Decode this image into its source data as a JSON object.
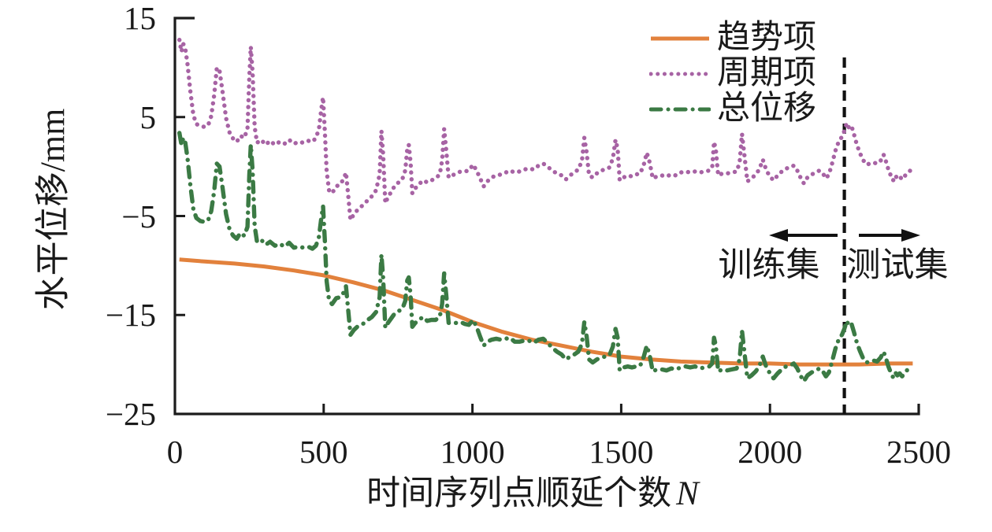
{
  "chart_data": {
    "type": "line",
    "title": "",
    "xlabel": "时间序列点顺延个数",
    "xlabel_suffix": "N",
    "ylabel": "水平位移/mm",
    "xlim": [
      0,
      2500
    ],
    "ylim": [
      -25,
      15
    ],
    "grid": false,
    "legend_position": "top-right",
    "axis_color": "#1c1c1c",
    "xticks": {
      "values": [
        0,
        500,
        1000,
        1500,
        2000,
        2500
      ],
      "labels": [
        "0",
        "500",
        "1000",
        "1500",
        "2000",
        "2500"
      ]
    },
    "yticks": {
      "values": [
        15,
        5,
        -5,
        -15,
        -25
      ],
      "labels": [
        "15",
        "5",
        "−5",
        "−15",
        "−25"
      ]
    },
    "annotations": {
      "split_N": 2250,
      "split_line_color": "#111111",
      "train_label": "训练集",
      "test_label": "测试集"
    },
    "series": [
      {
        "name": "趋势项",
        "style": "solid",
        "color": "#E2813C",
        "x": [
          15,
          100,
          200,
          300,
          400,
          500,
          600,
          700,
          800,
          900,
          1000,
          1100,
          1200,
          1300,
          1400,
          1500,
          1600,
          1700,
          1800,
          1900,
          2000,
          2100,
          2200,
          2300,
          2400,
          2480
        ],
        "y": [
          -9.4,
          -9.6,
          -9.8,
          -10.1,
          -10.5,
          -11.0,
          -11.7,
          -12.5,
          -13.5,
          -14.5,
          -15.7,
          -16.7,
          -17.5,
          -18.1,
          -18.7,
          -19.2,
          -19.5,
          -19.7,
          -19.8,
          -19.9,
          -19.9,
          -20.0,
          -20.0,
          -20.0,
          -19.9,
          -19.9
        ]
      },
      {
        "name": "周期项",
        "style": "dotted",
        "color": "#A763A4",
        "x": [
          15,
          22,
          28,
          35,
          42,
          52,
          62,
          72,
          85,
          100,
          112,
          122,
          132,
          141,
          150,
          160,
          172,
          184,
          196,
          208,
          220,
          233,
          244,
          250,
          255,
          261,
          268,
          276,
          290,
          305,
          320,
          336,
          352,
          368,
          384,
          400,
          416,
          432,
          448,
          462,
          474,
          484,
          492,
          498,
          504,
          510,
          518,
          528,
          542,
          556,
          568,
          575,
          582,
          590,
          602,
          616,
          632,
          648,
          662,
          676,
          688,
          694,
          700,
          707,
          716,
          728,
          740,
          752,
          764,
          774,
          781,
          786,
          792,
          798,
          808,
          820,
          834,
          848,
          862,
          876,
          890,
          898,
          905,
          912,
          920,
          932,
          946,
          960,
          974,
          988,
          1002,
          1014,
          1026,
          1038,
          1050,
          1064,
          1080,
          1096,
          1112,
          1126,
          1142,
          1158,
          1174,
          1190,
          1206,
          1222,
          1238,
          1252,
          1268,
          1284,
          1300,
          1314,
          1328,
          1342,
          1356,
          1368,
          1376,
          1384,
          1392,
          1404,
          1418,
          1432,
          1446,
          1460,
          1472,
          1481,
          1488,
          1495,
          1508,
          1522,
          1536,
          1550,
          1564,
          1576,
          1586,
          1596,
          1606,
          1620,
          1636,
          1652,
          1668,
          1684,
          1700,
          1716,
          1732,
          1748,
          1764,
          1780,
          1796,
          1806,
          1812,
          1818,
          1826,
          1840,
          1856,
          1872,
          1888,
          1898,
          1906,
          1914,
          1924,
          1938,
          1952,
          1964,
          1976,
          1988,
          2000,
          2012,
          2026,
          2040,
          2054,
          2068,
          2080,
          2092,
          2104,
          2114,
          2126,
          2140,
          2154,
          2166,
          2178,
          2188,
          2198,
          2208,
          2220,
          2232,
          2242,
          2250,
          2258,
          2266,
          2274,
          2282,
          2292,
          2302,
          2312,
          2324,
          2336,
          2348,
          2360,
          2372,
          2382,
          2390,
          2398,
          2406,
          2414,
          2421,
          2428,
          2436,
          2444,
          2452,
          2460,
          2468,
          2476
        ],
        "y": [
          12.8,
          11.6,
          12.4,
          11.9,
          10.4,
          7.6,
          5.2,
          4.3,
          4.1,
          4.0,
          4.2,
          5.1,
          7.2,
          10.0,
          9.7,
          7.6,
          4.9,
          3.4,
          2.8,
          2.5,
          3.1,
          2.9,
          3.8,
          9.0,
          12.1,
          9.5,
          4.0,
          2.4,
          2.7,
          2.2,
          2.6,
          2.2,
          2.5,
          2.3,
          2.7,
          2.3,
          2.5,
          2.4,
          2.6,
          2.5,
          2.9,
          3.8,
          5.8,
          7.0,
          3.5,
          -0.5,
          -2.4,
          -2.7,
          -2.0,
          -1.8,
          -1.2,
          -0.6,
          -2.8,
          -5.4,
          -4.8,
          -4.3,
          -3.9,
          -3.4,
          -3.0,
          -2.4,
          -0.8,
          3.6,
          1.2,
          -3.7,
          -3.1,
          -2.5,
          -1.9,
          -1.6,
          -1.3,
          -0.4,
          1.8,
          2.2,
          0.4,
          -2.7,
          -2.2,
          -1.8,
          -1.4,
          -1.6,
          -1.4,
          -1.2,
          -0.8,
          0.6,
          3.8,
          1.6,
          -1.1,
          -0.9,
          -0.7,
          -0.5,
          -0.5,
          -0.4,
          0.2,
          -0.4,
          -1.2,
          -2.0,
          -1.5,
          -1.1,
          -0.9,
          -0.8,
          -0.6,
          -0.4,
          -0.6,
          -0.5,
          -0.3,
          -0.2,
          -0.3,
          0.1,
          0.3,
          0.0,
          -0.4,
          -0.7,
          -0.9,
          -1.3,
          -0.9,
          -0.6,
          -0.3,
          0.6,
          2.9,
          1.4,
          -0.9,
          -1.1,
          -0.7,
          -0.4,
          -0.3,
          -0.1,
          0.8,
          2.7,
          1.8,
          -1.4,
          -1.1,
          -0.9,
          -1.0,
          -0.8,
          -0.7,
          0.2,
          1.4,
          0.4,
          -1.2,
          -1.0,
          -0.9,
          -1.0,
          -0.8,
          -0.9,
          -0.6,
          -0.5,
          -0.6,
          -0.5,
          -0.6,
          -0.5,
          -0.4,
          -0.1,
          2.5,
          1.7,
          -0.9,
          -0.7,
          -0.7,
          -0.6,
          -0.5,
          0.4,
          3.3,
          1.2,
          -1.5,
          -1.2,
          -0.8,
          -0.3,
          0.7,
          -0.4,
          -1.0,
          -1.4,
          -0.9,
          -0.5,
          -0.2,
          -0.1,
          0.1,
          -0.4,
          -1.2,
          -1.7,
          -1.1,
          -0.8,
          -0.6,
          -0.4,
          -0.7,
          -1.2,
          -0.8,
          0.2,
          1.6,
          2.6,
          3.0,
          3.6,
          4.4,
          3.9,
          4.1,
          3.3,
          2.2,
          1.4,
          0.7,
          0.2,
          0.3,
          0.4,
          0.3,
          0.6,
          1.2,
          0.5,
          -0.3,
          -0.9,
          -1.4,
          -0.9,
          -1.2,
          -1.0,
          -1.3,
          -1.0,
          -0.7,
          -0.5,
          -0.3
        ]
      },
      {
        "name": "总位移",
        "style": "dashdot",
        "color": "#3B7A44",
        "x": [
          15,
          22,
          28,
          35,
          42,
          52,
          62,
          72,
          85,
          100,
          112,
          122,
          132,
          141,
          150,
          160,
          172,
          184,
          196,
          208,
          220,
          233,
          244,
          250,
          255,
          261,
          268,
          276,
          290,
          305,
          320,
          336,
          352,
          368,
          384,
          400,
          416,
          432,
          448,
          462,
          474,
          484,
          492,
          498,
          504,
          510,
          518,
          528,
          542,
          556,
          568,
          575,
          582,
          590,
          602,
          616,
          632,
          648,
          662,
          676,
          688,
          694,
          700,
          707,
          716,
          728,
          740,
          752,
          764,
          774,
          781,
          786,
          792,
          798,
          808,
          820,
          834,
          848,
          862,
          876,
          890,
          898,
          905,
          912,
          920,
          932,
          946,
          960,
          974,
          988,
          1002,
          1014,
          1026,
          1038,
          1050,
          1064,
          1080,
          1096,
          1112,
          1126,
          1142,
          1158,
          1174,
          1190,
          1206,
          1222,
          1238,
          1252,
          1268,
          1284,
          1300,
          1314,
          1328,
          1342,
          1356,
          1368,
          1376,
          1384,
          1392,
          1404,
          1418,
          1432,
          1446,
          1460,
          1472,
          1481,
          1488,
          1495,
          1508,
          1522,
          1536,
          1550,
          1564,
          1576,
          1586,
          1596,
          1606,
          1620,
          1636,
          1652,
          1668,
          1684,
          1700,
          1716,
          1732,
          1748,
          1764,
          1780,
          1796,
          1806,
          1812,
          1818,
          1826,
          1840,
          1856,
          1872,
          1888,
          1898,
          1906,
          1914,
          1924,
          1938,
          1952,
          1964,
          1976,
          1988,
          2000,
          2012,
          2026,
          2040,
          2054,
          2068,
          2080,
          2092,
          2104,
          2114,
          2126,
          2140,
          2154,
          2166,
          2178,
          2188,
          2198,
          2208,
          2220,
          2232,
          2242,
          2250,
          2258,
          2266,
          2274,
          2282,
          2292,
          2302,
          2312,
          2324,
          2336,
          2348,
          2360,
          2372,
          2382,
          2390,
          2398,
          2406,
          2414,
          2421,
          2428,
          2436,
          2444,
          2452,
          2460,
          2468,
          2476
        ],
        "y": [
          3.4,
          2.2,
          2.9,
          2.4,
          0.9,
          -1.9,
          -4.3,
          -5.2,
          -5.5,
          -5.6,
          -5.4,
          -4.5,
          -2.5,
          0.3,
          0.0,
          -2.1,
          -4.8,
          -6.4,
          -7.0,
          -7.3,
          -6.7,
          -7.0,
          -6.1,
          -0.9,
          2.2,
          -0.4,
          -6.0,
          -7.6,
          -7.4,
          -7.9,
          -7.6,
          -8.0,
          -7.8,
          -8.1,
          -7.7,
          -8.2,
          -8.1,
          -8.2,
          -8.1,
          -8.3,
          -8.0,
          -7.1,
          -5.2,
          -4.0,
          -7.5,
          -11.6,
          -13.5,
          -13.9,
          -13.3,
          -13.2,
          -12.7,
          -12.1,
          -14.4,
          -17.0,
          -16.5,
          -16.1,
          -15.9,
          -15.5,
          -15.2,
          -14.7,
          -13.2,
          -8.9,
          -11.3,
          -16.3,
          -15.8,
          -15.3,
          -14.8,
          -14.6,
          -14.4,
          -13.6,
          -11.5,
          -11.2,
          -13.0,
          -16.2,
          -15.8,
          -15.5,
          -15.2,
          -15.6,
          -15.5,
          -15.5,
          -15.2,
          -13.9,
          -10.8,
          -13.0,
          -15.8,
          -15.8,
          -15.8,
          -15.7,
          -15.9,
          -16.0,
          -15.5,
          -16.2,
          -17.2,
          -18.1,
          -17.7,
          -17.5,
          -17.4,
          -17.5,
          -17.4,
          -17.3,
          -17.7,
          -17.7,
          -17.6,
          -17.6,
          -17.8,
          -17.5,
          -17.4,
          -17.8,
          -18.3,
          -18.7,
          -19.0,
          -19.5,
          -19.2,
          -19.0,
          -18.7,
          -17.9,
          -15.7,
          -17.2,
          -19.5,
          -19.8,
          -19.5,
          -19.3,
          -19.2,
          -19.1,
          -18.2,
          -16.4,
          -17.3,
          -20.6,
          -20.3,
          -20.2,
          -20.3,
          -20.2,
          -20.1,
          -19.2,
          -18.1,
          -19.1,
          -20.7,
          -20.5,
          -20.5,
          -20.6,
          -20.4,
          -20.5,
          -20.3,
          -20.2,
          -20.3,
          -20.2,
          -20.4,
          -20.3,
          -20.2,
          -19.9,
          -17.3,
          -18.1,
          -20.7,
          -20.5,
          -20.6,
          -20.5,
          -20.4,
          -19.5,
          -16.6,
          -18.7,
          -21.4,
          -21.1,
          -20.7,
          -20.2,
          -19.2,
          -20.3,
          -20.9,
          -21.4,
          -20.9,
          -20.5,
          -20.2,
          -20.1,
          -19.9,
          -20.4,
          -21.2,
          -21.7,
          -21.1,
          -20.8,
          -20.6,
          -20.4,
          -20.7,
          -21.2,
          -20.8,
          -19.8,
          -18.4,
          -17.4,
          -17.0,
          -16.4,
          -15.6,
          -16.1,
          -15.9,
          -16.7,
          -17.8,
          -18.6,
          -19.3,
          -19.8,
          -19.7,
          -19.6,
          -19.7,
          -19.3,
          -18.7,
          -19.4,
          -20.2,
          -20.8,
          -21.3,
          -20.8,
          -21.1,
          -20.9,
          -21.2,
          -20.9,
          -20.6,
          -20.4,
          -20.2
        ]
      }
    ]
  }
}
